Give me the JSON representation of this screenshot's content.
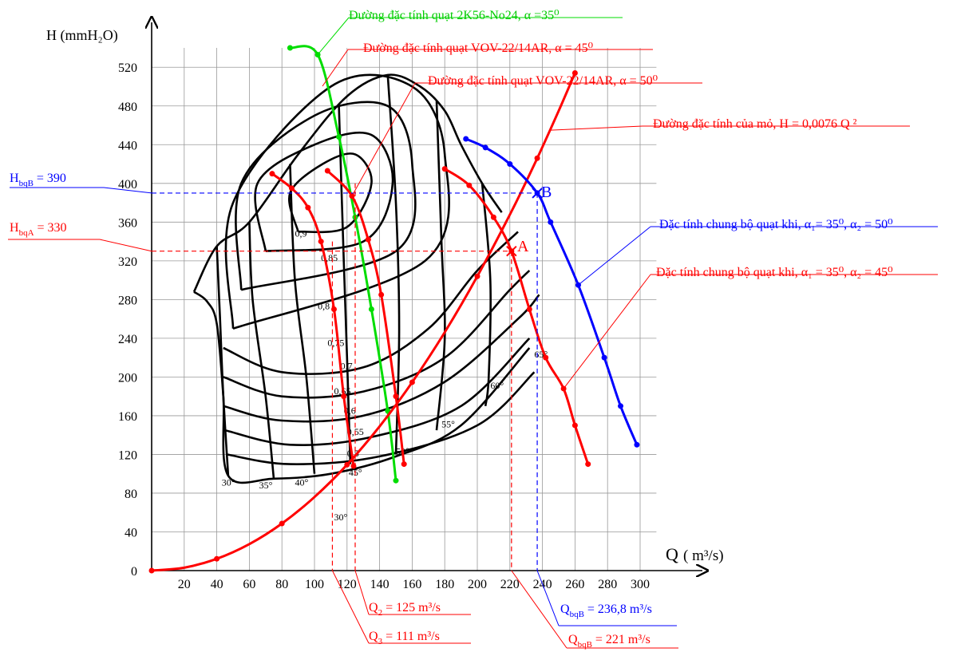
{
  "chart_data": {
    "type": "line",
    "xlabel": "Q",
    "xlabel_unit": "( m³/s)",
    "ylabel": "H (mmH₂O)",
    "xlim": [
      0,
      300
    ],
    "ylim": [
      0,
      520
    ],
    "x_ticks": [
      20,
      40,
      60,
      80,
      100,
      120,
      140,
      160,
      180,
      200,
      220,
      240,
      260,
      280,
      300
    ],
    "y_ticks": [
      0,
      40,
      80,
      120,
      160,
      200,
      240,
      280,
      320,
      360,
      400,
      440,
      480,
      520
    ],
    "grid": true,
    "colors": {
      "red": "#ff0000",
      "blue": "#0000ff",
      "green": "#00dd00",
      "black": "#000000"
    },
    "series": [
      {
        "name": "Đường đặc tính quạt 2K56-No24, α =35⁰",
        "color": "#00dd00",
        "points": [
          [
            85,
            540
          ],
          [
            102,
            533
          ],
          [
            115,
            448
          ],
          [
            125,
            365
          ],
          [
            135,
            270
          ],
          [
            145,
            165
          ],
          [
            150,
            93
          ]
        ]
      },
      {
        "name": "Đường đặc tính quạt VOV-22/14AR, α = 45⁰",
        "color": "#ff0000",
        "points": [
          [
            74,
            410
          ],
          [
            86,
            395
          ],
          [
            96,
            375
          ],
          [
            104,
            340
          ],
          [
            112,
            270
          ],
          [
            118,
            180
          ],
          [
            124,
            108
          ]
        ]
      },
      {
        "name": "Đường đặc tính quạt VOV-22/14AR, α = 50⁰",
        "color": "#ff0000",
        "points": [
          [
            108,
            413
          ],
          [
            123,
            387
          ],
          [
            133,
            342
          ],
          [
            141,
            285
          ],
          [
            150,
            180
          ],
          [
            155,
            110
          ]
        ]
      },
      {
        "name": "Đường đặc tính của mỏ, H = 0,0076 Q ²",
        "color": "#ff0000",
        "points": [
          [
            0,
            0
          ],
          [
            20,
            3
          ],
          [
            40,
            12.2
          ],
          [
            60,
            27.4
          ],
          [
            80,
            48.6
          ],
          [
            100,
            76
          ],
          [
            120,
            109.4
          ],
          [
            140,
            149
          ],
          [
            160,
            194.6
          ],
          [
            180,
            246.2
          ],
          [
            200,
            304
          ],
          [
            221,
            371
          ],
          [
            236.8,
            426
          ],
          [
            250,
            475
          ],
          [
            260,
            514
          ]
        ]
      },
      {
        "name": "Đặc tính chung bộ quạt khi, α₁= 35⁰, α₂ = 50⁰",
        "color": "#0000ff",
        "points": [
          [
            193,
            446
          ],
          [
            205,
            437
          ],
          [
            220,
            420
          ],
          [
            236.8,
            390
          ],
          [
            245,
            360
          ],
          [
            262,
            295
          ],
          [
            278,
            220
          ],
          [
            288,
            170
          ],
          [
            298,
            130
          ]
        ]
      },
      {
        "name": "Đặc tính chung bộ quạt khi, α₁ = 35⁰, α₂ = 45⁰",
        "color": "#ff0000",
        "points": [
          [
            180,
            415
          ],
          [
            195,
            398
          ],
          [
            210,
            365
          ],
          [
            221,
            330
          ],
          [
            232,
            270
          ],
          [
            242,
            220
          ],
          [
            253,
            188
          ],
          [
            260,
            150
          ],
          [
            268,
            110
          ]
        ]
      }
    ],
    "operating_points": [
      {
        "name": "A",
        "Q": 221,
        "H": 330,
        "color": "#ff0000"
      },
      {
        "name": "B",
        "Q": 236.8,
        "H": 390,
        "color": "#0000ff"
      }
    ],
    "annotations": {
      "HbqB": {
        "prefix": "H",
        "sub": "bqB",
        "text": " = 390",
        "value": 390,
        "color": "#0000ff"
      },
      "HbqA": {
        "prefix": "H",
        "sub": "bqA",
        "text": " = 330",
        "value": 330,
        "color": "#ff0000"
      },
      "Q2": {
        "prefix": "Q",
        "sub": "2",
        "text": " = 125 m³/s",
        "value": 125,
        "color": "#ff0000"
      },
      "Q3": {
        "prefix": "Q",
        "sub": "3",
        "text": " = 111 m³/s",
        "value": 111,
        "color": "#ff0000"
      },
      "QbqB_blue": {
        "prefix": "Q",
        "sub": "bqB",
        "text": " = 236,8 m³/s",
        "value": 236.8,
        "color": "#0000ff"
      },
      "QbqB_red": {
        "prefix": "Q",
        "sub": "bqB",
        "text": " = 221 m³/s",
        "value": 221,
        "color": "#ff0000"
      }
    },
    "fan_map": {
      "angles": [
        "30°",
        "35°",
        "40°",
        "45°",
        "50°",
        "55°",
        "60°",
        "65°"
      ],
      "efficiency_labels": [
        "0,9",
        "0,85",
        "0,8",
        "0,75",
        "0,7",
        "0,65",
        "0,6",
        "0,55",
        "0,5"
      ],
      "extra_label": "30°"
    }
  }
}
